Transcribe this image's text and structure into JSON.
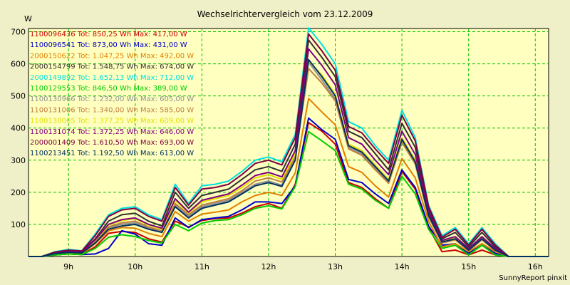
{
  "chart_data": {
    "type": "line",
    "title": "Wechselrichtervergleich vom 23.12.2009",
    "ylabel": "W",
    "xlabel": "",
    "ylim": [
      0,
      710
    ],
    "xlim": [
      8.4,
      16.2
    ],
    "y_ticks": [
      100,
      200,
      300,
      400,
      500,
      600,
      700
    ],
    "x_ticks": [
      {
        "value": 9,
        "label": "9h"
      },
      {
        "value": 10,
        "label": "10h"
      },
      {
        "value": 11,
        "label": "11h"
      },
      {
        "value": 12,
        "label": "12h"
      },
      {
        "value": 13,
        "label": "13h"
      },
      {
        "value": 14,
        "label": "14h"
      },
      {
        "value": 15,
        "label": "15h"
      },
      {
        "value": 16,
        "label": "16h"
      }
    ],
    "grid": true,
    "legend_position": "top-left",
    "credit": "SunnyReport pinxit",
    "x": [
      8.4,
      8.6,
      8.8,
      9.0,
      9.2,
      9.4,
      9.6,
      9.8,
      10.0,
      10.2,
      10.4,
      10.6,
      10.8,
      11.0,
      11.2,
      11.4,
      11.6,
      11.8,
      12.0,
      12.2,
      12.4,
      12.6,
      12.8,
      13.0,
      13.2,
      13.4,
      13.6,
      13.8,
      14.0,
      14.2,
      14.4,
      14.6,
      14.8,
      15.0,
      15.2,
      15.4,
      15.6,
      15.8,
      16.0,
      16.2
    ],
    "series": [
      {
        "name": "1100096436",
        "label": "1100096436 Tot: 850,25 Wh Max: 417,00 W",
        "color": "#cc0000",
        "values": [
          0,
          0,
          5,
          8,
          6,
          30,
          72,
          78,
          75,
          55,
          45,
          110,
          92,
          112,
          118,
          120,
          135,
          155,
          165,
          150,
          225,
          417,
          390,
          350,
          230,
          215,
          180,
          150,
          265,
          210,
          90,
          15,
          20,
          5,
          20,
          5,
          0,
          0,
          0,
          0
        ]
      },
      {
        "name": "1100096541",
        "label": "1100096541 Tot: 873,00 Wh Max: 431,00 W",
        "color": "#0000cc",
        "values": [
          0,
          0,
          5,
          8,
          6,
          8,
          25,
          80,
          70,
          40,
          35,
          120,
          90,
          115,
          120,
          125,
          145,
          170,
          170,
          165,
          220,
          431,
          395,
          365,
          240,
          230,
          195,
          165,
          270,
          215,
          95,
          35,
          40,
          10,
          40,
          10,
          0,
          0,
          0,
          0
        ]
      },
      {
        "name": "2000150622",
        "label": "2000150622 Tot: 1.047,25 Wh Max: 492,00 W",
        "color": "#e08000",
        "values": [
          0,
          0,
          8,
          10,
          8,
          40,
          80,
          90,
          88,
          72,
          62,
          140,
          110,
          132,
          138,
          145,
          170,
          190,
          200,
          190,
          260,
          492,
          450,
          410,
          280,
          262,
          220,
          185,
          305,
          245,
          110,
          30,
          40,
          15,
          40,
          15,
          0,
          0,
          0,
          0
        ]
      },
      {
        "name": "2000154799",
        "label": "2000154799 Tot: 1.548,75 Wh Max: 674,00 W",
        "color": "#303030",
        "values": [
          0,
          0,
          12,
          18,
          15,
          55,
          110,
          130,
          135,
          110,
          95,
          200,
          150,
          190,
          200,
          210,
          240,
          270,
          280,
          265,
          350,
          674,
          620,
          560,
          390,
          370,
          320,
          270,
          415,
          340,
          145,
          55,
          75,
          30,
          75,
          30,
          0,
          0,
          0,
          0
        ]
      },
      {
        "name": "2000149892",
        "label": "2000149892 Tot: 1.652,13 Wh Max: 712,00 W",
        "color": "#00e0e0",
        "values": [
          0,
          0,
          15,
          22,
          18,
          70,
          130,
          150,
          155,
          130,
          115,
          225,
          165,
          220,
          225,
          235,
          265,
          300,
          310,
          295,
          380,
          712,
          660,
          600,
          420,
          400,
          345,
          300,
          455,
          370,
          160,
          65,
          90,
          40,
          90,
          40,
          0,
          0,
          0,
          0
        ]
      },
      {
        "name": "1100129553",
        "label": "1100129553 Tot: 846,50 Wh Max: 389,00 W",
        "color": "#00cc00",
        "values": [
          0,
          0,
          5,
          8,
          6,
          25,
          60,
          68,
          62,
          50,
          42,
          100,
          80,
          104,
          112,
          115,
          130,
          150,
          158,
          148,
          218,
          389,
          360,
          330,
          225,
          210,
          175,
          150,
          250,
          195,
          85,
          25,
          35,
          5,
          35,
          5,
          0,
          0,
          0,
          0
        ]
      },
      {
        "name": "1100130966",
        "label": "1100130966 Tot: 1.232,00 Wh Max: 605,00 W",
        "color": "#909090",
        "values": [
          0,
          0,
          10,
          14,
          12,
          45,
          90,
          100,
          105,
          88,
          78,
          160,
          125,
          155,
          165,
          175,
          200,
          225,
          235,
          222,
          305,
          605,
          550,
          490,
          340,
          320,
          275,
          230,
          360,
          290,
          125,
          45,
          55,
          20,
          55,
          20,
          0,
          0,
          0,
          0
        ]
      },
      {
        "name": "1100131006",
        "label": "1100131006 Tot: 1.340,00 Wh Max: 585,00 W",
        "color": "#c08040",
        "values": [
          0,
          0,
          10,
          14,
          12,
          48,
          92,
          105,
          110,
          92,
          80,
          165,
          130,
          160,
          170,
          180,
          205,
          235,
          245,
          232,
          310,
          585,
          540,
          485,
          335,
          315,
          270,
          228,
          355,
          288,
          124,
          42,
          52,
          18,
          52,
          18,
          0,
          0,
          0,
          0
        ]
      },
      {
        "name": "1100130065",
        "label": "1100130065 Tot: 1.377,25 Wh Max: 609,00 W",
        "color": "#e0e000",
        "values": [
          0,
          0,
          11,
          15,
          13,
          50,
          98,
          112,
          118,
          98,
          85,
          175,
          135,
          170,
          180,
          190,
          215,
          245,
          255,
          240,
          320,
          609,
          565,
          505,
          350,
          330,
          285,
          240,
          370,
          300,
          130,
          48,
          58,
          22,
          58,
          22,
          0,
          0,
          0,
          0
        ]
      },
      {
        "name": "1100131074",
        "label": "1100131074 Tot: 1.372,25 Wh Max: 646,00 W",
        "color": "#800080",
        "values": [
          0,
          0,
          11,
          16,
          13,
          52,
          100,
          115,
          120,
          100,
          88,
          180,
          138,
          175,
          185,
          195,
          222,
          252,
          262,
          248,
          330,
          646,
          595,
          535,
          370,
          350,
          300,
          255,
          390,
          318,
          138,
          50,
          62,
          25,
          62,
          25,
          0,
          0,
          0,
          0
        ]
      },
      {
        "name": "2000001409",
        "label": "2000001409 Tot: 1.610,50 Wh Max: 693,00 W",
        "color": "#800040",
        "values": [
          0,
          0,
          14,
          20,
          17,
          65,
          125,
          145,
          150,
          125,
          110,
          215,
          160,
          210,
          215,
          225,
          255,
          290,
          300,
          285,
          370,
          693,
          640,
          580,
          405,
          385,
          335,
          290,
          440,
          360,
          155,
          60,
          85,
          35,
          85,
          35,
          0,
          0,
          0,
          0
        ]
      },
      {
        "name": "1100213451",
        "label": "1100213451 Tot: 1.192,50 Wh Max: 613,00 W",
        "color": "#003060",
        "values": [
          0,
          0,
          9,
          13,
          11,
          42,
          85,
          95,
          100,
          85,
          75,
          155,
          120,
          150,
          160,
          170,
          195,
          220,
          230,
          218,
          300,
          613,
          560,
          500,
          345,
          325,
          280,
          235,
          365,
          295,
          128,
          45,
          55,
          20,
          55,
          20,
          0,
          0,
          0,
          0
        ]
      }
    ]
  }
}
